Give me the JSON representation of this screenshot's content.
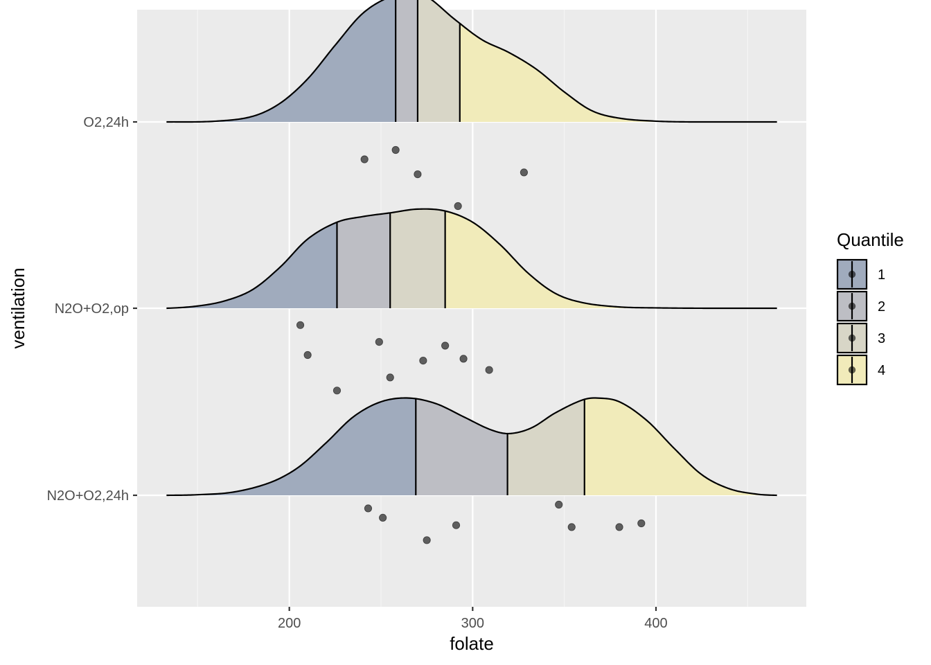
{
  "chart_data": {
    "type": "ridgeline",
    "xlabel": "folate",
    "ylabel": "ventilation",
    "xlim": [
      117,
      482
    ],
    "x_ticks": [
      200,
      300,
      400
    ],
    "x_minor_ticks": [
      150,
      250,
      350,
      450
    ],
    "grid": true,
    "categories": [
      "N2O+O2,24h",
      "N2O+O2,op",
      "O2,24h"
    ],
    "legend": {
      "title": "Quantile",
      "position": "right",
      "entries": [
        {
          "label": "1",
          "color": "#a0abbd"
        },
        {
          "label": "2",
          "color": "#bdbec4"
        },
        {
          "label": "3",
          "color": "#d8d6c7"
        },
        {
          "label": "4",
          "color": "#f1ebba"
        }
      ]
    },
    "density_range": [
      133,
      466
    ],
    "series": [
      {
        "name": "N2O+O2,24h",
        "points": [
          243,
          251,
          275,
          291,
          347,
          354,
          380,
          392
        ],
        "point_y": [
          0.07,
          0.12,
          0.24,
          0.16,
          0.05,
          0.17,
          0.17,
          0.15
        ],
        "quantile_cuts": [
          269,
          319,
          361
        ],
        "density": {
          "x": [
            133,
            150,
            170,
            190,
            205,
            220,
            235,
            250,
            265,
            280,
            295,
            310,
            320,
            332,
            345,
            360,
            368,
            380,
            395,
            410,
            425,
            440,
            455,
            466
          ],
          "y": [
            0.0,
            0.003,
            0.018,
            0.07,
            0.15,
            0.28,
            0.42,
            0.5,
            0.52,
            0.49,
            0.42,
            0.35,
            0.33,
            0.36,
            0.44,
            0.51,
            0.52,
            0.5,
            0.4,
            0.25,
            0.11,
            0.035,
            0.006,
            0.0
          ]
        }
      },
      {
        "name": "N2O+O2,op",
        "points": [
          206,
          210,
          226,
          249,
          255,
          273,
          285,
          295,
          309
        ],
        "point_y": [
          0.09,
          0.25,
          0.44,
          0.18,
          0.37,
          0.28,
          0.2,
          0.27,
          0.33
        ],
        "quantile_cuts": [
          226,
          255,
          285
        ],
        "density": {
          "x": [
            133,
            150,
            165,
            180,
            195,
            210,
            226,
            240,
            255,
            270,
            285,
            300,
            315,
            330,
            345,
            360,
            380,
            400,
            430,
            466
          ],
          "y": [
            0.0,
            0.012,
            0.04,
            0.1,
            0.22,
            0.37,
            0.46,
            0.49,
            0.51,
            0.53,
            0.52,
            0.46,
            0.34,
            0.19,
            0.08,
            0.03,
            0.007,
            0.002,
            0.0,
            0.0
          ]
        }
      },
      {
        "name": "O2,24h",
        "points": [
          241,
          258,
          270,
          292,
          328
        ],
        "point_y": [
          0.2,
          0.15,
          0.28,
          0.45,
          0.27
        ],
        "quantile_cuts": [
          258,
          270,
          293
        ],
        "density": {
          "x": [
            133,
            160,
            180,
            195,
            210,
            225,
            240,
            255,
            265,
            275,
            290,
            305,
            320,
            335,
            350,
            365,
            380,
            400,
            420,
            466
          ],
          "y": [
            0.0,
            0.004,
            0.03,
            0.1,
            0.23,
            0.41,
            0.58,
            0.67,
            0.69,
            0.67,
            0.55,
            0.44,
            0.37,
            0.28,
            0.16,
            0.06,
            0.02,
            0.004,
            0.0,
            0.0
          ]
        }
      }
    ]
  }
}
